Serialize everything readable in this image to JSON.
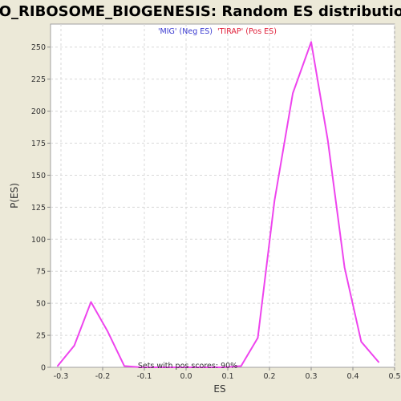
{
  "chart_data": {
    "type": "line",
    "title": "GO_RIBOSOME_BIOGENESIS: Random ES distribution",
    "legend": {
      "neg_label": "'MIG' (Neg ES)",
      "pos_label": "'TIRAP' (Pos ES)",
      "placement": "top-center"
    },
    "xlabel": "ES",
    "ylabel": "P(ES)",
    "xlim": [
      -0.325,
      0.5
    ],
    "ylim": [
      0,
      268
    ],
    "x_ticks": [
      -0.3,
      -0.2,
      -0.1,
      0.0,
      0.1,
      0.2,
      0.3,
      0.4,
      0.5
    ],
    "x_tick_labels": [
      "-0.3",
      "-0.2",
      "-0.1",
      "0.0",
      "0.1",
      "0.2",
      "0.3",
      "0.4",
      "0.5"
    ],
    "y_ticks": [
      0,
      25,
      50,
      75,
      100,
      125,
      150,
      175,
      200,
      225,
      250
    ],
    "y_tick_labels": [
      "0",
      "25",
      "50",
      "75",
      "100",
      "125",
      "150",
      "175",
      "200",
      "225",
      "250"
    ],
    "grid": true,
    "annotation": "Sets with pos scores: 90%",
    "series": [
      {
        "color": "#ee44ee",
        "x": [
          -0.308,
          -0.268,
          -0.228,
          -0.188,
          -0.148,
          -0.108,
          -0.068,
          -0.028,
          0.012,
          0.052,
          0.092,
          0.132,
          0.172,
          0.212,
          0.256,
          0.3,
          0.34,
          0.38,
          0.42,
          0.462
        ],
        "y": [
          1,
          17,
          51,
          28,
          1,
          0,
          0,
          0,
          0,
          0,
          0,
          1,
          23,
          130,
          214,
          254,
          177,
          78,
          20,
          4
        ]
      }
    ]
  }
}
